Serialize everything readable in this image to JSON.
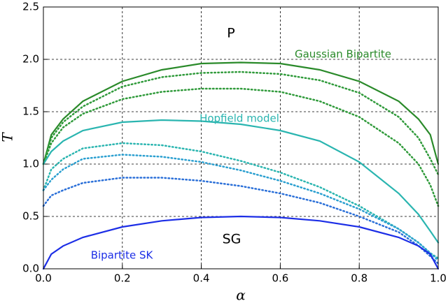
{
  "chart_data": {
    "type": "line",
    "xlabel": "α",
    "ylabel": "T",
    "x": [
      0,
      0.02,
      0.05,
      0.1,
      0.2,
      0.3,
      0.4,
      0.5,
      0.6,
      0.7,
      0.8,
      0.9,
      0.95,
      0.98,
      1.0
    ],
    "series": [
      {
        "name": "Gaussian Bipartite",
        "color": "#2a8a2a",
        "style": "solid",
        "values": [
          1.0,
          1.28,
          1.43,
          1.6,
          1.79,
          1.9,
          1.96,
          1.97,
          1.96,
          1.9,
          1.79,
          1.6,
          1.43,
          1.28,
          1.0
        ]
      },
      {
        "color": "#2f9a3a",
        "style": "dotted",
        "values": [
          1.0,
          1.25,
          1.4,
          1.55,
          1.74,
          1.83,
          1.87,
          1.88,
          1.86,
          1.8,
          1.68,
          1.45,
          1.25,
          1.05,
          0.9
        ]
      },
      {
        "color": "#2f9a3a",
        "style": "dotted",
        "values": [
          1.0,
          1.2,
          1.35,
          1.48,
          1.62,
          1.69,
          1.72,
          1.72,
          1.69,
          1.6,
          1.45,
          1.2,
          1.0,
          0.8,
          0.6
        ]
      },
      {
        "name": "Hopfield model",
        "color": "#2ab5b0",
        "style": "solid",
        "values": [
          1.0,
          1.12,
          1.22,
          1.32,
          1.4,
          1.42,
          1.41,
          1.38,
          1.32,
          1.22,
          1.02,
          0.72,
          0.52,
          0.36,
          0.25
        ]
      },
      {
        "color": "#2ab5b0",
        "style": "dotted",
        "values": [
          0.75,
          0.95,
          1.05,
          1.15,
          1.2,
          1.18,
          1.12,
          1.03,
          0.92,
          0.78,
          0.6,
          0.38,
          0.25,
          0.15,
          0.1
        ]
      },
      {
        "color": "#2a9fd0",
        "style": "dotted",
        "values": [
          0.75,
          0.85,
          0.95,
          1.05,
          1.09,
          1.07,
          1.02,
          0.94,
          0.84,
          0.72,
          0.57,
          0.38,
          0.25,
          0.15,
          0.08
        ]
      },
      {
        "color": "#2a6fd8",
        "style": "dotted",
        "values": [
          0.6,
          0.7,
          0.75,
          0.82,
          0.87,
          0.87,
          0.84,
          0.79,
          0.72,
          0.63,
          0.5,
          0.35,
          0.22,
          0.12,
          0.05
        ]
      },
      {
        "name": "Bipartite SK",
        "color": "#1c2ee6",
        "style": "solid",
        "values": [
          0,
          0.14,
          0.218,
          0.3,
          0.4,
          0.458,
          0.49,
          0.5,
          0.49,
          0.458,
          0.4,
          0.3,
          0.218,
          0.14,
          0
        ]
      }
    ],
    "annotations": [
      "P",
      "SG"
    ],
    "xlim": [
      0,
      1
    ],
    "ylim": [
      0,
      2.5
    ],
    "xticks": [
      {
        "value": 0,
        "label": "0.0"
      },
      0.2,
      0.4,
      0.6,
      0.8,
      {
        "value": 1,
        "label": "1.0"
      }
    ],
    "yticks": [
      {
        "value": 0,
        "label": "0.0"
      },
      0.5,
      {
        "value": 1,
        "label": "1.0"
      },
      1.5,
      {
        "value": 2,
        "label": "2.0"
      },
      2.5
    ],
    "grid": true
  }
}
